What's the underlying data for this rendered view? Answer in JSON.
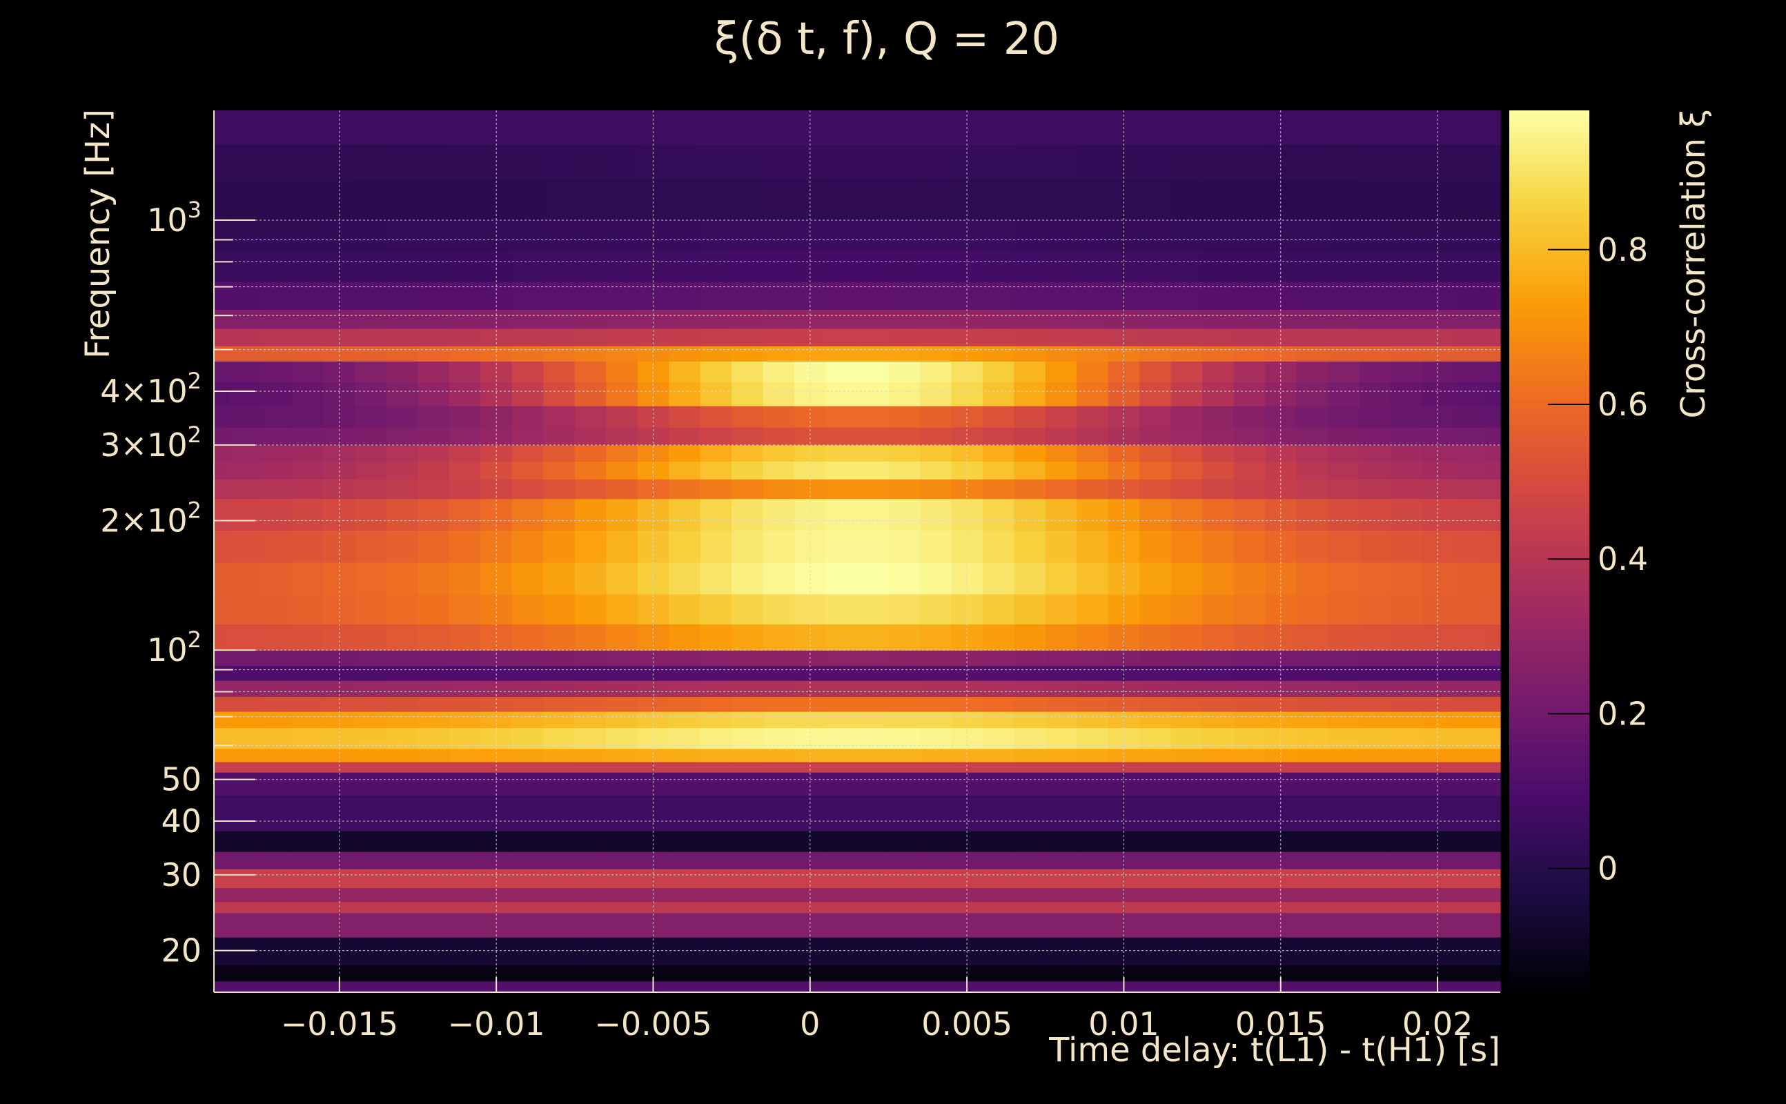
{
  "colors": {
    "background": "#000000",
    "text": "#f5e6c8",
    "grid": "#d8d8d8",
    "colormap_stops": [
      "#000004",
      "#1b0c41",
      "#4a0c6b",
      "#781c6d",
      "#a52c60",
      "#cf4446",
      "#ed6925",
      "#fb9b06",
      "#f7d13d",
      "#fcffa4"
    ]
  },
  "chart_data": {
    "type": "heatmap",
    "title": "ξ(δ t, f), Q = 20",
    "xlabel": "Time delay: t(L1) - t(H1) [s]",
    "ylabel": "Frequency [Hz]",
    "colorbar_label": "Cross-correlation ξ",
    "xlim": [
      -0.019,
      0.022
    ],
    "ylim": [
      16,
      1800
    ],
    "yscale": "log",
    "clim": [
      -0.16,
      0.98
    ],
    "grid": true,
    "x_ticks": [
      {
        "value": -0.015,
        "label": "−0.015"
      },
      {
        "value": -0.01,
        "label": "−0.01"
      },
      {
        "value": -0.005,
        "label": "−0.005"
      },
      {
        "value": 0,
        "label": "0"
      },
      {
        "value": 0.005,
        "label": "0.005"
      },
      {
        "value": 0.01,
        "label": "0.01"
      },
      {
        "value": 0.015,
        "label": "0.015"
      },
      {
        "value": 0.02,
        "label": "0.02"
      }
    ],
    "y_ticks": [
      {
        "value": 20,
        "label": "20"
      },
      {
        "value": 30,
        "label": "30"
      },
      {
        "value": 40,
        "label": "40"
      },
      {
        "value": 50,
        "label": "50"
      },
      {
        "value": 100,
        "label": "10",
        "sup": "2"
      },
      {
        "value": 200,
        "label": "2×10",
        "sup": "2"
      },
      {
        "value": 300,
        "label": "3×10",
        "sup": "2"
      },
      {
        "value": 400,
        "label": "4×10",
        "sup": "2"
      },
      {
        "value": 1000,
        "label": "10",
        "sup": "3"
      }
    ],
    "y_minor_ticks": [
      60,
      70,
      80,
      90,
      500,
      600,
      700,
      800,
      900
    ],
    "colorbar_ticks": [
      {
        "value": 0,
        "label": "0"
      },
      {
        "value": 0.2,
        "label": "0.2"
      },
      {
        "value": 0.4,
        "label": "0.4"
      },
      {
        "value": 0.6,
        "label": "0.6"
      },
      {
        "value": 0.8,
        "label": "0.8"
      }
    ],
    "time_bins": [
      -0.019,
      -0.018,
      -0.017,
      -0.016,
      -0.015,
      -0.014,
      -0.013,
      -0.012,
      -0.011,
      -0.01,
      -0.009,
      -0.008,
      -0.007,
      -0.006,
      -0.005,
      -0.004,
      -0.003,
      -0.002,
      -0.001,
      0,
      0.001,
      0.002,
      0.003,
      0.004,
      0.005,
      0.006,
      0.007,
      0.008,
      0.009,
      0.01,
      0.011,
      0.012,
      0.013,
      0.014,
      0.015,
      0.016,
      0.017,
      0.018,
      0.019,
      0.02,
      0.021,
      0.022
    ],
    "frequency_bands": [
      {
        "f_low": 16,
        "f_high": 17,
        "xi_peak": 0.12,
        "xi_floor": 0.12
      },
      {
        "f_low": 17,
        "f_high": 18.5,
        "xi_peak": -0.13,
        "xi_floor": -0.13
      },
      {
        "f_low": 18.5,
        "f_high": 21.5,
        "xi_peak": -0.06,
        "xi_floor": -0.06
      },
      {
        "f_low": 21.5,
        "f_high": 24.5,
        "xi_peak": 0.25,
        "xi_floor": 0.25
      },
      {
        "f_low": 24.5,
        "f_high": 26,
        "xi_peak": 0.42,
        "xi_floor": 0.42
      },
      {
        "f_low": 26,
        "f_high": 28,
        "xi_peak": 0.3,
        "xi_floor": 0.3
      },
      {
        "f_low": 28,
        "f_high": 31,
        "xi_peak": 0.45,
        "xi_floor": 0.45
      },
      {
        "f_low": 31,
        "f_high": 34,
        "xi_peak": 0.2,
        "xi_floor": 0.2
      },
      {
        "f_low": 34,
        "f_high": 38,
        "xi_peak": -0.08,
        "xi_floor": -0.08
      },
      {
        "f_low": 38,
        "f_high": 46,
        "xi_peak": 0.06,
        "xi_floor": 0.06
      },
      {
        "f_low": 46,
        "f_high": 52,
        "xi_peak": 0.12,
        "xi_floor": 0.12
      },
      {
        "f_low": 52,
        "f_high": 55,
        "xi_peak": 0.45,
        "xi_floor": 0.45
      },
      {
        "f_low": 55,
        "f_high": 59,
        "xi_peak": 0.78,
        "xi_floor": 0.72
      },
      {
        "f_low": 59,
        "f_high": 66,
        "xi_peak": 0.96,
        "xi_floor": 0.8
      },
      {
        "f_low": 66,
        "f_high": 72,
        "xi_peak": 0.88,
        "xi_floor": 0.72
      },
      {
        "f_low": 72,
        "f_high": 78,
        "xi_peak": 0.62,
        "xi_floor": 0.5
      },
      {
        "f_low": 78,
        "f_high": 85,
        "xi_peak": 0.38,
        "xi_floor": 0.3
      },
      {
        "f_low": 85,
        "f_high": 92,
        "xi_peak": 0.12,
        "xi_floor": 0.1
      },
      {
        "f_low": 92,
        "f_high": 100,
        "xi_peak": 0.28,
        "xi_floor": 0.2
      },
      {
        "f_low": 100,
        "f_high": 115,
        "xi_peak": 0.78,
        "xi_floor": 0.5
      },
      {
        "f_low": 115,
        "f_high": 135,
        "xi_peak": 0.9,
        "xi_floor": 0.55
      },
      {
        "f_low": 135,
        "f_high": 160,
        "xi_peak": 0.98,
        "xi_floor": 0.55
      },
      {
        "f_low": 160,
        "f_high": 190,
        "xi_peak": 0.96,
        "xi_floor": 0.5
      },
      {
        "f_low": 190,
        "f_high": 225,
        "xi_peak": 0.95,
        "xi_floor": 0.45
      },
      {
        "f_low": 225,
        "f_high": 250,
        "xi_peak": 0.7,
        "xi_floor": 0.38
      },
      {
        "f_low": 250,
        "f_high": 275,
        "xi_peak": 0.92,
        "xi_floor": 0.32
      },
      {
        "f_low": 275,
        "f_high": 300,
        "xi_peak": 0.86,
        "xi_floor": 0.3
      },
      {
        "f_low": 300,
        "f_high": 330,
        "xi_peak": 0.52,
        "xi_floor": 0.2
      },
      {
        "f_low": 330,
        "f_high": 370,
        "xi_peak": 0.6,
        "xi_floor": 0.15
      },
      {
        "f_low": 370,
        "f_high": 420,
        "xi_peak": 0.96,
        "xi_floor": 0.12
      },
      {
        "f_low": 420,
        "f_high": 470,
        "xi_peak": 0.98,
        "xi_floor": 0.15
      },
      {
        "f_low": 470,
        "f_high": 510,
        "xi_peak": 0.75,
        "xi_floor": 0.55
      },
      {
        "f_low": 510,
        "f_high": 560,
        "xi_peak": 0.45,
        "xi_floor": 0.4
      },
      {
        "f_low": 560,
        "f_high": 620,
        "xi_peak": 0.3,
        "xi_floor": 0.25
      },
      {
        "f_low": 620,
        "f_high": 720,
        "xi_peak": 0.15,
        "xi_floor": 0.12
      },
      {
        "f_low": 720,
        "f_high": 850,
        "xi_peak": 0.08,
        "xi_floor": 0.05
      },
      {
        "f_low": 850,
        "f_high": 1000,
        "xi_peak": 0.05,
        "xi_floor": 0.03
      },
      {
        "f_low": 1000,
        "f_high": 1250,
        "xi_peak": 0.02,
        "xi_floor": 0.01
      },
      {
        "f_low": 1250,
        "f_high": 1500,
        "xi_peak": 0.04,
        "xi_floor": 0.02
      },
      {
        "f_low": 1500,
        "f_high": 1800,
        "xi_peak": 0.07,
        "xi_floor": 0.06
      }
    ]
  }
}
